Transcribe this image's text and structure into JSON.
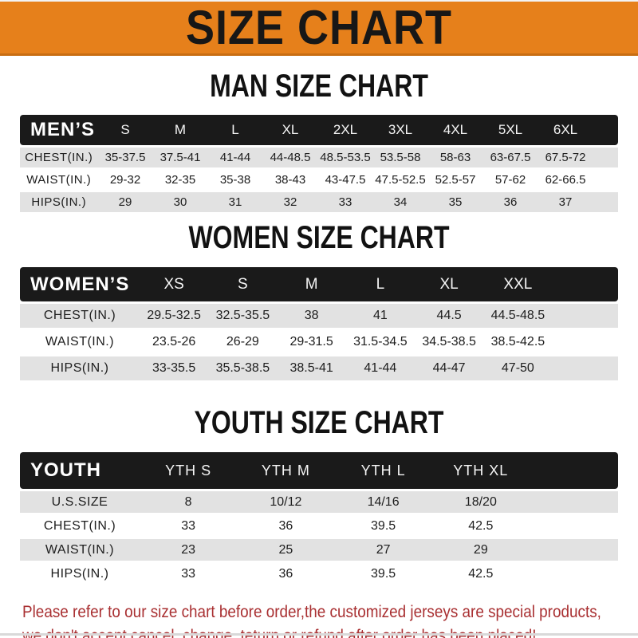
{
  "banner": {
    "title": "SIZE CHART"
  },
  "colors": {
    "banner_orange": "#E6801B",
    "header_black": "#1A1A1A",
    "row_gray": "#E2E2E2",
    "footer_red": "#A93032"
  },
  "sections": [
    {
      "id": "men",
      "title": "MAN SIZE CHART",
      "label": "MEN’S",
      "columns": [
        "S",
        "M",
        "L",
        "XL",
        "2XL",
        "3XL",
        "4XL",
        "5XL",
        "6XL"
      ],
      "rows": [
        {
          "label": "CHEST(IN.)",
          "values": [
            "35-37.5",
            "37.5-41",
            "41-44",
            "44-48.5",
            "48.5-53.5",
            "53.5-58",
            "58-63",
            "63-67.5",
            "67.5-72"
          ]
        },
        {
          "label": "WAIST(IN.)",
          "values": [
            "29-32",
            "32-35",
            "35-38",
            "38-43",
            "43-47.5",
            "47.5-52.5",
            "52.5-57",
            "57-62",
            "62-66.5"
          ]
        },
        {
          "label": "HIPS(IN.)",
          "values": [
            "29",
            "30",
            "31",
            "32",
            "33",
            "34",
            "35",
            "36",
            "37"
          ]
        }
      ]
    },
    {
      "id": "women",
      "title": "WOMEN SIZE CHART",
      "label": "WOMEN’S",
      "columns": [
        "XS",
        "S",
        "M",
        "L",
        "XL",
        "XXL"
      ],
      "rows": [
        {
          "label": "CHEST(IN.)",
          "values": [
            "29.5-32.5",
            "32.5-35.5",
            "38",
            "41",
            "44.5",
            "44.5-48.5"
          ]
        },
        {
          "label": "WAIST(IN.)",
          "values": [
            "23.5-26",
            "26-29",
            "29-31.5",
            "31.5-34.5",
            "34.5-38.5",
            "38.5-42.5"
          ]
        },
        {
          "label": "HIPS(IN.)",
          "values": [
            "33-35.5",
            "35.5-38.5",
            "38.5-41",
            "41-44",
            "44-47",
            "47-50"
          ]
        }
      ]
    },
    {
      "id": "youth",
      "title": "YOUTH SIZE CHART",
      "label": "YOUTH",
      "columns": [
        "YTH S",
        "YTH M",
        "YTH L",
        "YTH XL"
      ],
      "rows": [
        {
          "label": "U.S.SIZE",
          "values": [
            "8",
            "10/12",
            "14/16",
            "18/20"
          ]
        },
        {
          "label": "CHEST(IN.)",
          "values": [
            "33",
            "36",
            "39.5",
            "42.5"
          ]
        },
        {
          "label": "WAIST(IN.)",
          "values": [
            "23",
            "25",
            "27",
            "29"
          ]
        },
        {
          "label": "HIPS(IN.)",
          "values": [
            "33",
            "36",
            "39.5",
            "42.5"
          ]
        }
      ]
    }
  ],
  "footer": {
    "line1": "Please refer to our size chart before order,the customized jerseys are special products,",
    "line2": "we don't accept cancel, change, teturn or refund after order has been placed!"
  }
}
